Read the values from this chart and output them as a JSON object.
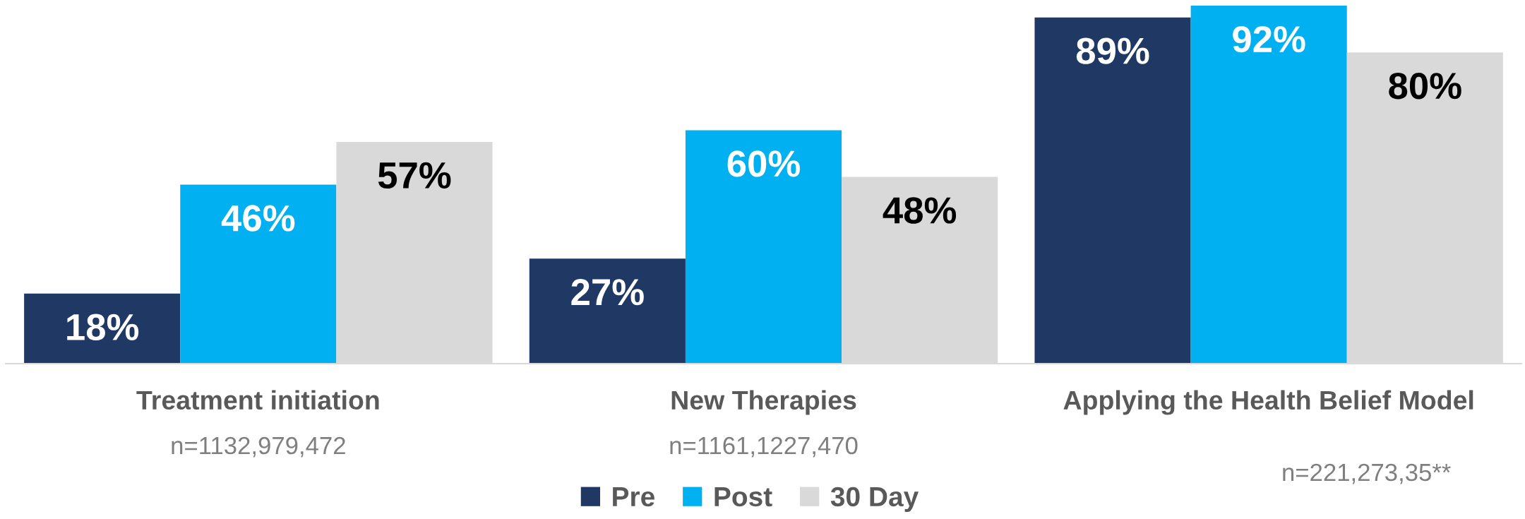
{
  "chart_data": {
    "type": "bar",
    "categories": [
      "Treatment initiation",
      "New Therapies",
      "Applying the Health Belief Model"
    ],
    "series": [
      {
        "name": "Pre",
        "color": "#203864",
        "values": [
          18,
          27,
          89
        ],
        "value_labels": [
          "18%",
          "27%",
          "89%"
        ]
      },
      {
        "name": "Post",
        "color": "#00b0f0",
        "values": [
          46,
          60,
          92
        ],
        "value_labels": [
          "46%",
          "60%",
          "92%"
        ]
      },
      {
        "name": "30 Day",
        "color": "#d9d9d9",
        "values": [
          57,
          48,
          80
        ],
        "value_labels": [
          "57%",
          "48%",
          "80%"
        ]
      }
    ],
    "annotations": [
      "n=1132,979,472",
      "n=1161,1227,470",
      "n=221,273,35**"
    ],
    "legend": "bottom"
  }
}
